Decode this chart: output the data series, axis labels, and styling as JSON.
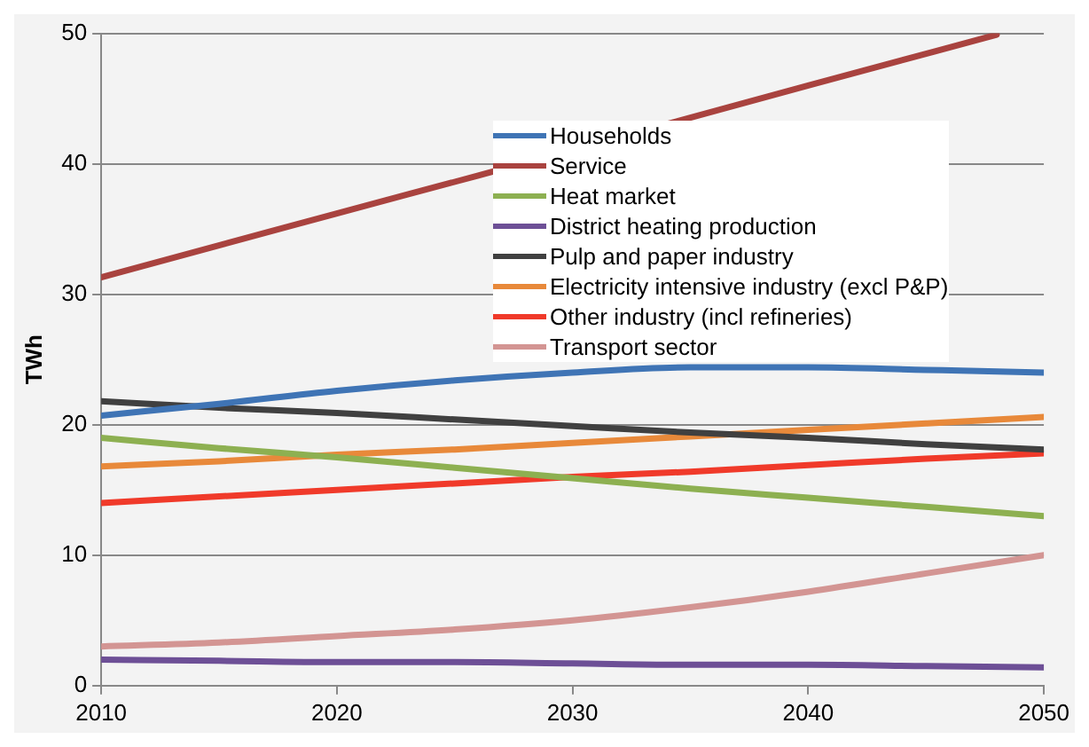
{
  "chart_data": {
    "type": "line",
    "ylabel": "TWh",
    "x": [
      2010,
      2015,
      2020,
      2025,
      2030,
      2035,
      2040,
      2045,
      2050
    ],
    "series": [
      {
        "name": "Households",
        "color": "#3f74b5",
        "values": [
          20.7,
          21.6,
          22.6,
          23.4,
          24.0,
          24.4,
          24.4,
          24.2,
          24.0
        ]
      },
      {
        "name": "Service",
        "color": "#a9433f",
        "x": [
          2010,
          2020,
          2026,
          2040,
          2048
        ],
        "values": [
          31.3,
          36.2,
          39.1,
          46.0,
          49.9
        ]
      },
      {
        "name": "Heat market",
        "color": "#8db051",
        "values": [
          19.0,
          18.2,
          17.5,
          16.7,
          15.9,
          15.1,
          14.4,
          13.7,
          13.0
        ]
      },
      {
        "name": "District heating production",
        "color": "#6d4f96",
        "values": [
          2.0,
          1.9,
          1.8,
          1.8,
          1.7,
          1.6,
          1.6,
          1.5,
          1.4
        ]
      },
      {
        "name": "Pulp and paper industry",
        "color": "#404040",
        "values": [
          21.8,
          21.3,
          20.9,
          20.4,
          19.9,
          19.4,
          19.0,
          18.5,
          18.1
        ]
      },
      {
        "name": "Electricity intensive industry (excl P&P)",
        "color": "#e8893a",
        "values": [
          16.8,
          17.2,
          17.7,
          18.1,
          18.6,
          19.1,
          19.6,
          20.1,
          20.6
        ]
      },
      {
        "name": "Other industry (incl refineries)",
        "color": "#f03a2a",
        "values": [
          14.0,
          14.5,
          15.0,
          15.5,
          16.0,
          16.4,
          16.9,
          17.4,
          17.8
        ]
      },
      {
        "name": "Transport sector",
        "color": "#d39593",
        "values": [
          3.0,
          3.3,
          3.8,
          4.3,
          5.0,
          6.0,
          7.2,
          8.6,
          10.0
        ]
      }
    ],
    "xlim": [
      2010,
      2050
    ],
    "xticks": [
      2010,
      2020,
      2030,
      2040,
      2050
    ],
    "ylim": [
      0,
      50
    ],
    "yticks": [
      0,
      10,
      20,
      30,
      40,
      50
    ],
    "grid": "y",
    "legend": "top",
    "marker": "none",
    "line_style": "solid"
  }
}
